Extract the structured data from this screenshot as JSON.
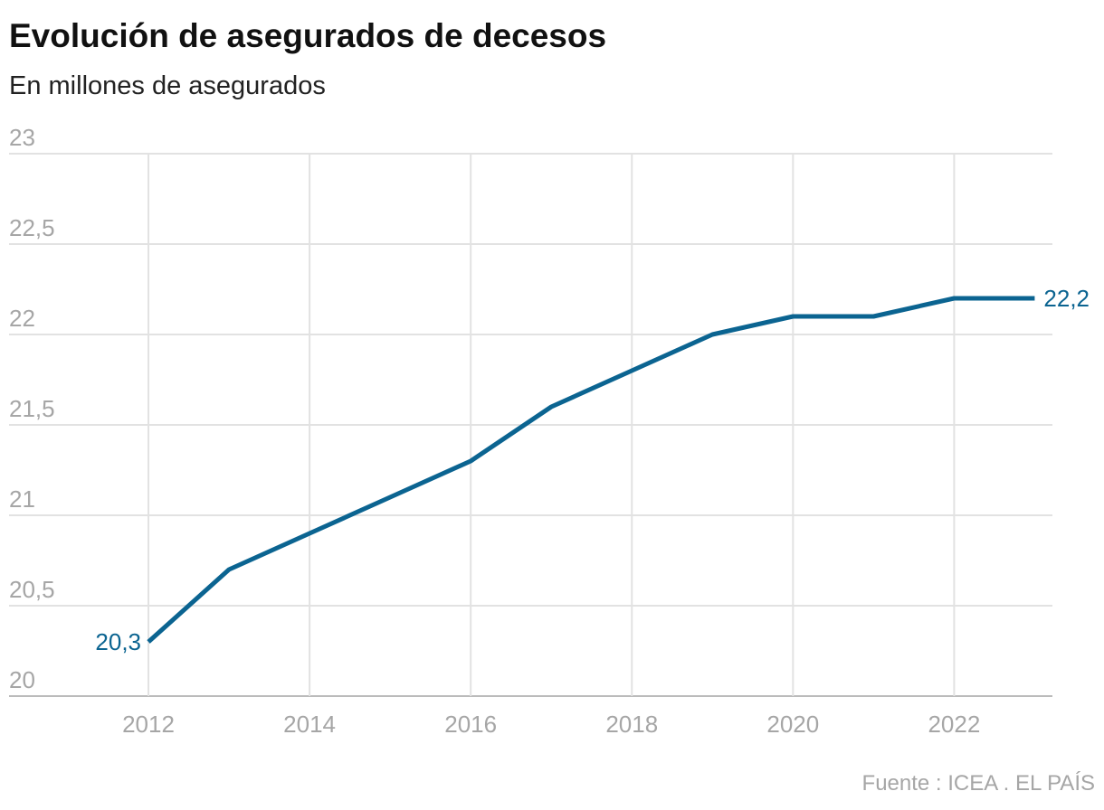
{
  "chart_data": {
    "type": "line",
    "title": "Evolución de asegurados de decesos",
    "subtitle": "En millones de asegurados",
    "source": "Fuente : ICEA . EL PAÍS",
    "x": [
      2012,
      2013,
      2014,
      2015,
      2016,
      2017,
      2018,
      2019,
      2020,
      2021,
      2022,
      2023
    ],
    "values": [
      20.3,
      20.7,
      20.9,
      21.1,
      21.3,
      21.6,
      21.8,
      22.0,
      22.1,
      22.1,
      22.2,
      22.2
    ],
    "value_labels": [
      "20,3",
      null,
      null,
      null,
      null,
      null,
      null,
      null,
      null,
      null,
      null,
      "22,2"
    ],
    "color": "#0b6491",
    "xlim": [
      2010.27,
      2023.22
    ],
    "xticks": [
      2012,
      2014,
      2016,
      2018,
      2020,
      2022
    ],
    "ylim": [
      20,
      23
    ],
    "yticks": [
      20,
      {
        "value": 20.5,
        "label": "20,5"
      },
      21,
      {
        "value": 21.5,
        "label": "21,5"
      },
      22,
      {
        "value": 22.5,
        "label": "22,5"
      },
      23
    ],
    "grid": true
  }
}
